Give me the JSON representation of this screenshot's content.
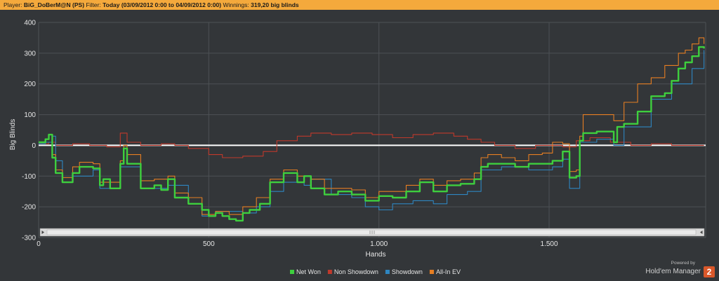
{
  "header": {
    "player_label": "Player:",
    "player_value": "BiG_DoBerM@N (PS)",
    "filter_label": "Filter:",
    "filter_value": "Today (03/09/2012 0:00 to 04/09/2012 0:00)",
    "winnings_label": "Winnings:",
    "winnings_value": "319,20 big blinds"
  },
  "branding": {
    "powered_by": "Powered by",
    "product": "Hold'em Manager",
    "logo_digit": "2"
  },
  "colors": {
    "background": "#333639",
    "grid": "#4d5155",
    "header_bar": "#f4a93c",
    "net_won": "#3ecf3e",
    "non_showdown": "#c0392b",
    "showdown": "#2e86c1",
    "allin_ev": "#e67e22",
    "zero_line": "#ffffff"
  },
  "chart_data": {
    "type": "line",
    "xlabel": "Hands",
    "ylabel": "Big Blinds",
    "xlim": [
      0,
      1960
    ],
    "ylim": [
      -300,
      400
    ],
    "x_ticks": [
      0,
      500,
      1000,
      1500
    ],
    "x_tick_labels": [
      "0",
      "500",
      "1.000",
      "1.500"
    ],
    "y_ticks": [
      400,
      300,
      200,
      100,
      0,
      -100,
      -200,
      -300
    ],
    "y_tick_labels": [
      "400",
      "300",
      "200",
      "100",
      "0",
      "-100",
      "-200",
      "-300"
    ],
    "grid": true,
    "legend_position": "bottom",
    "series": [
      {
        "name": "Net Won",
        "color": "#3ecf3e",
        "x": [
          0,
          20,
          30,
          40,
          50,
          70,
          100,
          120,
          160,
          180,
          190,
          210,
          240,
          250,
          260,
          300,
          340,
          360,
          380,
          400,
          440,
          480,
          500,
          520,
          540,
          560,
          580,
          600,
          620,
          650,
          680,
          720,
          760,
          780,
          800,
          840,
          880,
          920,
          960,
          1000,
          1040,
          1080,
          1120,
          1160,
          1200,
          1240,
          1280,
          1300,
          1320,
          1360,
          1400,
          1440,
          1480,
          1510,
          1540,
          1560,
          1580,
          1590,
          1600,
          1640,
          1690,
          1700,
          1720,
          1760,
          1800,
          1840,
          1860,
          1880,
          1900,
          1920,
          1940,
          1955
        ],
        "y": [
          10,
          20,
          35,
          -40,
          -90,
          -120,
          -90,
          -70,
          -75,
          -130,
          -110,
          -140,
          -60,
          -10,
          -60,
          -140,
          -130,
          -145,
          -110,
          -170,
          -190,
          -210,
          -230,
          -220,
          -230,
          -240,
          -245,
          -220,
          -210,
          -190,
          -120,
          -90,
          -120,
          -100,
          -140,
          -160,
          -150,
          -160,
          -180,
          -165,
          -170,
          -150,
          -120,
          -150,
          -130,
          -125,
          -110,
          -70,
          -60,
          -60,
          -70,
          -60,
          -60,
          -50,
          -20,
          -105,
          -100,
          15,
          40,
          45,
          10,
          60,
          70,
          110,
          160,
          170,
          210,
          250,
          270,
          290,
          320,
          315
        ]
      },
      {
        "name": "Non Showdown",
        "color": "#c0392b",
        "x": [
          0,
          30,
          50,
          100,
          150,
          200,
          240,
          260,
          300,
          360,
          400,
          440,
          500,
          540,
          600,
          660,
          700,
          760,
          800,
          860,
          920,
          980,
          1040,
          1100,
          1160,
          1220,
          1260,
          1300,
          1340,
          1400,
          1460,
          1500,
          1540,
          1580,
          1620,
          1680,
          1740,
          1800,
          1860,
          1920,
          1955
        ],
        "y": [
          5,
          10,
          0,
          5,
          0,
          -5,
          40,
          10,
          0,
          5,
          0,
          -10,
          -30,
          -40,
          -35,
          -20,
          15,
          30,
          40,
          35,
          40,
          35,
          25,
          35,
          40,
          30,
          20,
          10,
          0,
          -10,
          0,
          0,
          -5,
          15,
          25,
          10,
          0,
          5,
          0,
          0,
          0
        ]
      },
      {
        "name": "Showdown",
        "color": "#2e86c1",
        "x": [
          0,
          20,
          40,
          50,
          70,
          100,
          160,
          180,
          240,
          260,
          300,
          380,
          440,
          480,
          520,
          560,
          600,
          640,
          680,
          720,
          780,
          800,
          860,
          920,
          960,
          1000,
          1040,
          1100,
          1160,
          1200,
          1260,
          1300,
          1360,
          1440,
          1510,
          1540,
          1560,
          1590,
          1640,
          1690,
          1720,
          1800,
          1860,
          1920,
          1955
        ],
        "y": [
          5,
          10,
          30,
          -50,
          -120,
          -100,
          -80,
          -140,
          -70,
          -70,
          -140,
          -130,
          -190,
          -230,
          -215,
          -215,
          -220,
          -200,
          -150,
          -120,
          -130,
          -110,
          -160,
          -170,
          -200,
          -210,
          -190,
          -180,
          -190,
          -160,
          -150,
          -80,
          -70,
          -80,
          -70,
          -45,
          -140,
          10,
          20,
          0,
          60,
          150,
          200,
          250,
          310
        ]
      },
      {
        "name": "All-In EV",
        "color": "#e67e22",
        "x": [
          0,
          20,
          30,
          40,
          50,
          70,
          100,
          120,
          160,
          180,
          210,
          240,
          250,
          260,
          300,
          340,
          380,
          400,
          440,
          480,
          520,
          560,
          600,
          640,
          680,
          720,
          760,
          800,
          840,
          880,
          920,
          960,
          1000,
          1040,
          1080,
          1120,
          1160,
          1200,
          1240,
          1280,
          1300,
          1320,
          1360,
          1400,
          1440,
          1480,
          1510,
          1540,
          1560,
          1580,
          1590,
          1600,
          1640,
          1690,
          1720,
          1760,
          1800,
          1840,
          1880,
          1900,
          1920,
          1940,
          1955
        ],
        "y": [
          10,
          20,
          35,
          -30,
          -80,
          -105,
          -70,
          -55,
          -60,
          -120,
          -120,
          -50,
          0,
          -30,
          -115,
          -110,
          -100,
          -155,
          -170,
          -225,
          -215,
          -225,
          -200,
          -170,
          -110,
          -80,
          -100,
          -110,
          -140,
          -140,
          -145,
          -170,
          -150,
          -150,
          -130,
          -110,
          -130,
          -115,
          -110,
          -90,
          -40,
          -30,
          -40,
          -50,
          -30,
          -25,
          10,
          5,
          -85,
          -80,
          30,
          100,
          100,
          80,
          140,
          200,
          220,
          260,
          300,
          310,
          330,
          350,
          330
        ]
      }
    ]
  }
}
